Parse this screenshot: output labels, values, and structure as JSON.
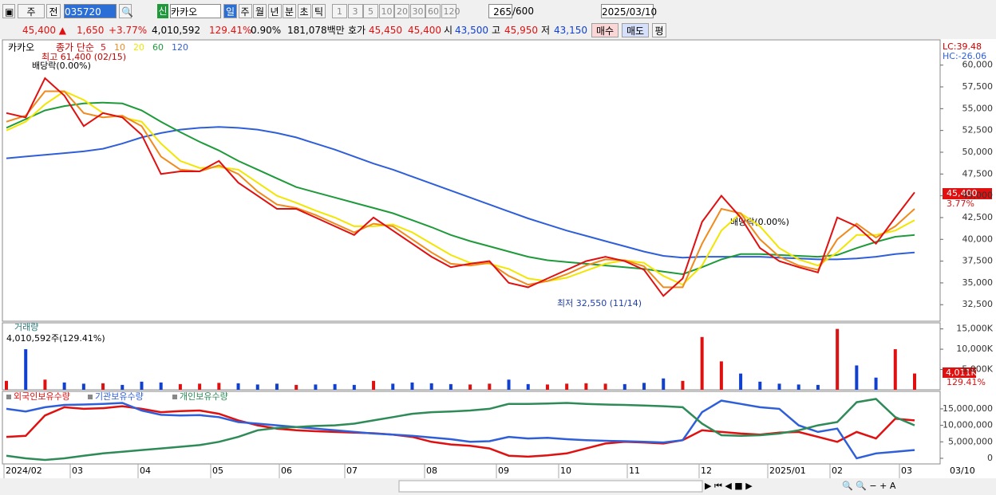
{
  "toolbar": {
    "type_btn": "주",
    "prev_btn": "전",
    "code": "035720",
    "badge": "신",
    "name": "카카오",
    "periods": [
      "일",
      "주",
      "월",
      "년",
      "분",
      "초",
      "틱"
    ],
    "intervals": [
      "1",
      "3",
      "5",
      "10",
      "20",
      "30",
      "60",
      "120"
    ],
    "count": "265",
    "max": "/600",
    "date": "2025/03/10"
  },
  "quote": {
    "price": "45,400 ▲",
    "change": "1,650",
    "rate": "+3.77%",
    "volume": "4,010,592",
    "vol_rate": "129.41%",
    "turnover": "0.90%",
    "amount": "181,078백만",
    "ask_label": "호가",
    "ask": "45,450",
    "bid": "45,400",
    "open_label": "시",
    "open": "43,500",
    "high_label": "고",
    "high": "45,950",
    "low_label": "저",
    "low": "43,150",
    "buy": "매수",
    "sell": "매도",
    "avg": "평"
  },
  "price_chart": {
    "name": "카카오",
    "legend_title": "종가 단순",
    "lc": "LC:39.48",
    "hc": "HC:-26.06",
    "ylim": [
      30600,
      62900
    ],
    "yticks": [
      {
        "value": 60000,
        "label": "60,000"
      },
      {
        "value": 57500,
        "label": "57,500"
      },
      {
        "value": 55000,
        "label": "55,000"
      },
      {
        "value": 52500,
        "label": "52,500"
      },
      {
        "value": 50000,
        "label": "50,000"
      },
      {
        "value": 47500,
        "label": "47,500"
      },
      {
        "value": 45000,
        "label": "45,000"
      },
      {
        "value": 42500,
        "label": "42,500"
      },
      {
        "value": 40000,
        "label": "40,000"
      },
      {
        "value": 37500,
        "label": "37,500"
      },
      {
        "value": 35000,
        "label": "35,000"
      },
      {
        "value": 32500,
        "label": "32,500"
      }
    ],
    "annotations": {
      "high": "최고 61,400 (02/15)",
      "dividend1": "배당락(0.00%)",
      "dividend2": "배당락(0.00%)",
      "low": "최저 32,550 (11/14)"
    },
    "last_price": "45,400",
    "last_rate": "3.77%",
    "series": [
      {
        "name": "5",
        "color": "#e01010",
        "values": [
          54500,
          54000,
          58500,
          56500,
          53000,
          54500,
          54000,
          52000,
          47500,
          47800,
          47800,
          49000,
          46500,
          45000,
          43500,
          43500,
          42500,
          41500,
          40500,
          42500,
          41000,
          39500,
          38000,
          36800,
          37200,
          37500,
          35000,
          34500,
          35500,
          36500,
          37500,
          38000,
          37500,
          36500,
          33500,
          35500,
          42000,
          45000,
          42500,
          39000,
          37500,
          36800,
          36200,
          42500,
          41500,
          39500,
          42500,
          45400
        ]
      },
      {
        "name": "10",
        "color": "#f08a1c",
        "values": [
          53500,
          54200,
          57000,
          57000,
          54500,
          54000,
          54200,
          53000,
          49500,
          48000,
          47800,
          48500,
          47500,
          45500,
          44000,
          43600,
          42800,
          41800,
          40800,
          41800,
          41500,
          40000,
          38500,
          37200,
          37000,
          37300,
          35800,
          34800,
          35200,
          36000,
          37000,
          37700,
          37600,
          36900,
          34500,
          34500,
          39500,
          43500,
          43000,
          40000,
          38000,
          37000,
          36500,
          40000,
          41800,
          40200,
          41500,
          43500
        ]
      },
      {
        "name": "20",
        "color": "#f2e600",
        "values": [
          52500,
          53500,
          55500,
          57000,
          56000,
          54500,
          54000,
          53500,
          51000,
          49000,
          48200,
          48300,
          48000,
          46500,
          45000,
          44200,
          43300,
          42500,
          41500,
          41500,
          41700,
          40800,
          39500,
          38200,
          37300,
          37200,
          36600,
          35500,
          35200,
          35600,
          36400,
          37200,
          37600,
          37300,
          35800,
          34800,
          37000,
          41000,
          43000,
          41500,
          39000,
          37700,
          37000,
          38500,
          40500,
          40500,
          41000,
          42200
        ]
      },
      {
        "name": "60",
        "color": "#1e9a3a",
        "values": [
          52800,
          53800,
          54800,
          55300,
          55600,
          55700,
          55600,
          54800,
          53500,
          52300,
          51200,
          50200,
          49000,
          48000,
          47000,
          46000,
          45400,
          44800,
          44200,
          43600,
          43000,
          42200,
          41400,
          40500,
          39800,
          39200,
          38600,
          38000,
          37600,
          37400,
          37200,
          37000,
          36800,
          36600,
          36300,
          36000,
          36800,
          37700,
          38300,
          38300,
          38200,
          38100,
          38000,
          38200,
          39000,
          39700,
          40300,
          40500
        ]
      },
      {
        "name": "120",
        "color": "#2f5fd8",
        "values": [
          49300,
          49500,
          49700,
          49900,
          50100,
          50400,
          51000,
          51700,
          52200,
          52600,
          52800,
          52900,
          52800,
          52600,
          52200,
          51700,
          51000,
          50300,
          49500,
          48700,
          48000,
          47200,
          46400,
          45600,
          44800,
          44000,
          43200,
          42400,
          41700,
          41000,
          40400,
          39800,
          39200,
          38600,
          38100,
          37900,
          38000,
          38000,
          38000,
          38000,
          37900,
          37800,
          37700,
          37700,
          37800,
          38000,
          38300,
          38500
        ]
      }
    ]
  },
  "volume_chart": {
    "title": "거래량",
    "info": "4,010,592주(129.41%)",
    "last_label": "4,011K",
    "last_rate": "129.41%",
    "up_color": "#e01010",
    "down_color": "#1040d0",
    "ylim": [
      0,
      16500
    ],
    "yticks": [
      {
        "value": 15000,
        "label": "15,000K"
      },
      {
        "value": 10000,
        "label": "10,000K"
      },
      {
        "value": 5000,
        "label": "5,000K"
      }
    ],
    "values": [
      2200,
      10000,
      2500,
      1800,
      1500,
      1600,
      1200,
      2000,
      1800,
      1400,
      1500,
      1700,
      1600,
      1300,
      1500,
      1200,
      1300,
      1400,
      1200,
      2200,
      1500,
      1800,
      1600,
      1400,
      1300,
      1500,
      2500,
      1400,
      1300,
      1500,
      1600,
      1500,
      1400,
      1700,
      2800,
      2200,
      13000,
      7000,
      4000,
      2000,
      1500,
      1300,
      1200,
      15000,
      6000,
      3000,
      10000,
      4011
    ]
  },
  "holdings_chart": {
    "ylim": [
      -1700000,
      20300000
    ],
    "yticks": [
      {
        "value": 15000000,
        "label": "15,000,000"
      },
      {
        "value": 10000000,
        "label": "10,000,000"
      },
      {
        "value": 5000000,
        "label": "5,000,000"
      },
      0
    ],
    "series": [
      {
        "name": "외국인보유수량",
        "color": "#e01010",
        "values": [
          6500000,
          6800000,
          13000000,
          15500000,
          15000000,
          15200000,
          15800000,
          15000000,
          14000000,
          14300000,
          14500000,
          13500000,
          11500000,
          10000000,
          9000000,
          8500000,
          8200000,
          8000000,
          7800000,
          7600000,
          7200000,
          6500000,
          5000000,
          4200000,
          3800000,
          3000000,
          800000,
          500000,
          900000,
          1500000,
          3000000,
          4500000,
          5000000,
          4800000,
          4500000,
          5500000,
          8500000,
          8000000,
          7500000,
          7200000,
          7800000,
          8000000,
          6500000,
          5000000,
          8000000,
          6000000,
          12000000,
          11500000
        ]
      },
      {
        "name": "기관보유수량",
        "color": "#2f5fd8",
        "values": [
          15000000,
          14200000,
          15500000,
          16200000,
          16300000,
          16500000,
          16800000,
          14500000,
          13200000,
          13000000,
          13100000,
          12500000,
          11000000,
          10500000,
          10000000,
          9500000,
          9000000,
          8500000,
          8000000,
          7500000,
          7200000,
          6800000,
          6300000,
          5800000,
          5000000,
          5200000,
          6500000,
          6000000,
          6200000,
          5800000,
          5500000,
          5300000,
          5200000,
          5000000,
          4800000,
          5500000,
          14000000,
          17500000,
          16500000,
          15500000,
          15000000,
          10000000,
          8000000,
          9000000,
          0,
          1500000,
          2000000,
          2500000
        ]
      },
      {
        "name": "개인보유수량",
        "color": "#2e8b57",
        "values": [
          800000,
          0,
          -500000,
          0,
          800000,
          1500000,
          2000000,
          2500000,
          3000000,
          3500000,
          4000000,
          5000000,
          6500000,
          8500000,
          9200000,
          9500000,
          9800000,
          10000000,
          10500000,
          11500000,
          12500000,
          13500000,
          14000000,
          14200000,
          14500000,
          15000000,
          16500000,
          16500000,
          16600000,
          16800000,
          16500000,
          16300000,
          16200000,
          16000000,
          15800000,
          15500000,
          10500000,
          7000000,
          6800000,
          7000000,
          7500000,
          8500000,
          10000000,
          11000000,
          17000000,
          18000000,
          12500000,
          10000000
        ]
      }
    ]
  },
  "x_axis": {
    "labels": [
      "2024/02",
      "03",
      "04",
      "05",
      "06",
      "07",
      "08",
      "09",
      "10",
      "11",
      "12",
      "2025/01",
      "02",
      "03"
    ],
    "end_label": "03/10"
  }
}
